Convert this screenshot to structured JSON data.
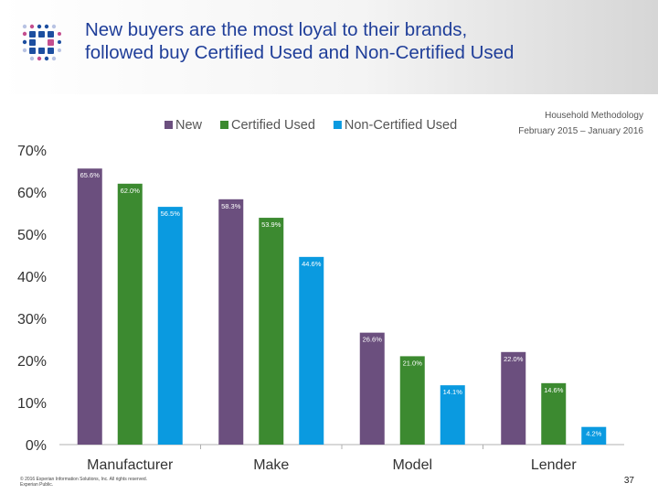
{
  "header": {
    "title_line1": "New buyers are the most loyal to their brands,",
    "title_line2": "followed buy Certified Used and Non-Certified Used"
  },
  "methodology": {
    "line1": "Household Methodology",
    "line2": "February 2015 – January 2016"
  },
  "chart_data": {
    "type": "bar",
    "categories": [
      "Manufacturer",
      "Make",
      "Model",
      "Lender"
    ],
    "series": [
      {
        "name": "New",
        "color": "#6b4f7e",
        "values": [
          65.6,
          58.3,
          26.6,
          22.0
        ],
        "labels": [
          "65.6%",
          "58.3%",
          "26.6%",
          "22.0%"
        ]
      },
      {
        "name": "Certified Used",
        "color": "#3c8a30",
        "values": [
          62.0,
          53.9,
          21.0,
          14.6
        ],
        "labels": [
          "62.0%",
          "53.9%",
          "21.0%",
          "14.6%"
        ]
      },
      {
        "name": "Non-Certified Used",
        "color": "#0a9ae0",
        "values": [
          56.5,
          44.6,
          14.1,
          4.2
        ],
        "labels": [
          "56.5%",
          "44.6%",
          "14.1%",
          "4.2%"
        ]
      }
    ],
    "ylim": [
      0,
      70
    ],
    "yticks": [
      0,
      10,
      20,
      30,
      40,
      50,
      60,
      70
    ],
    "ytick_labels": [
      "0%",
      "10%",
      "20%",
      "30%",
      "40%",
      "50%",
      "60%",
      "70%"
    ],
    "legend_position": "top-left",
    "grid": false
  },
  "footer": {
    "copyright_line1": "© 2016 Experian Information Solutions, Inc. All rights reserved.",
    "copyright_line2": "Experian Public.",
    "page_number": "37"
  }
}
